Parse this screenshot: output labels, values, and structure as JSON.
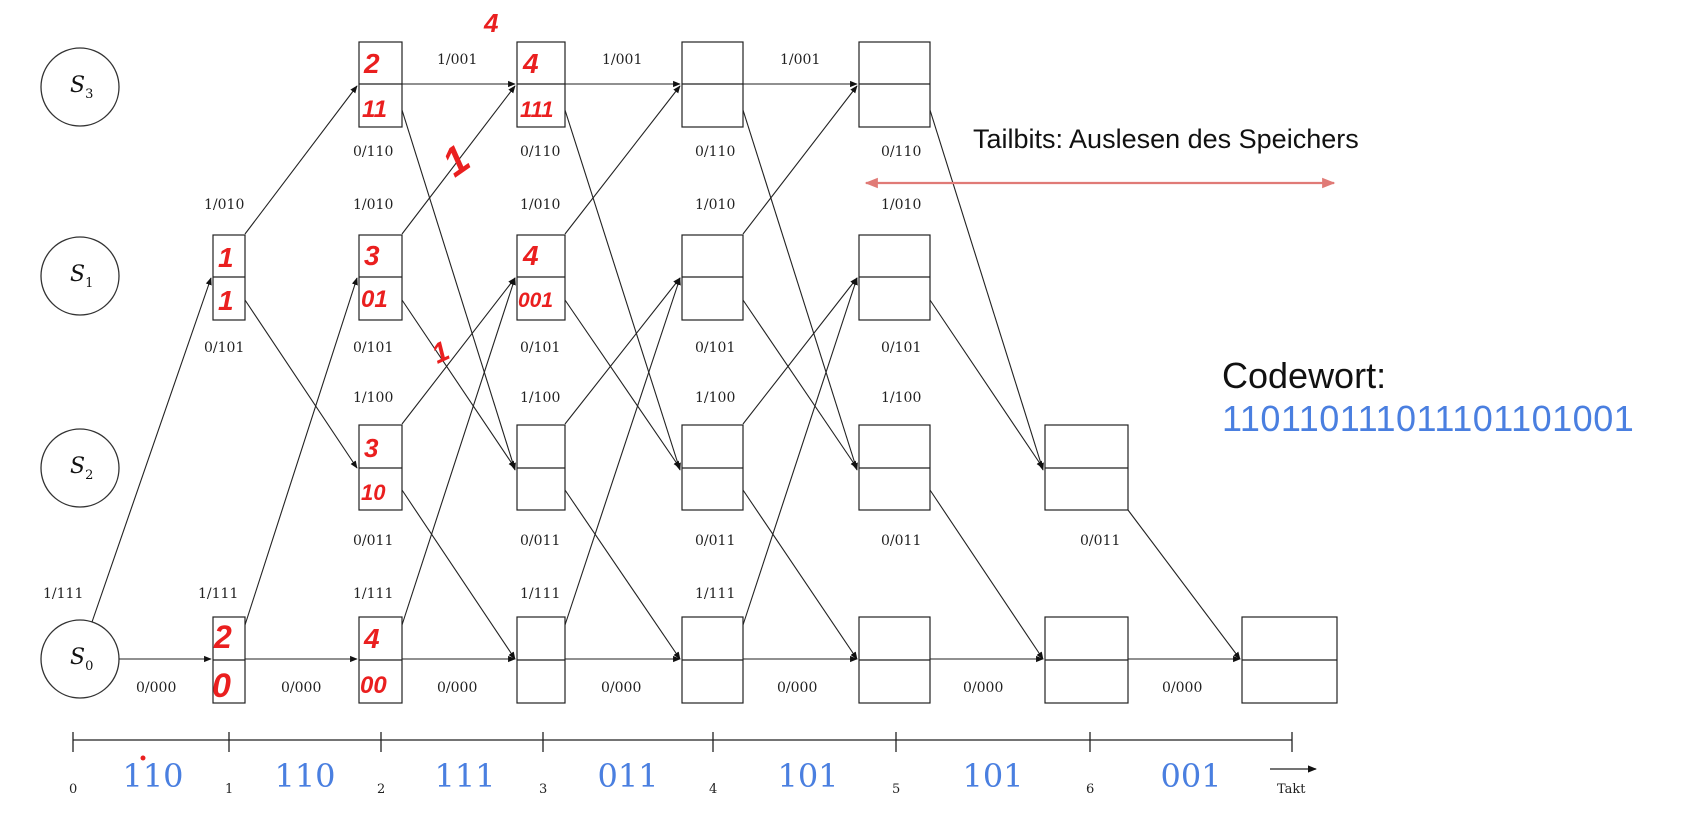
{
  "diagram": {
    "states": [
      {
        "id": "S3",
        "base": "S",
        "sub": "3"
      },
      {
        "id": "S1",
        "base": "S",
        "sub": "1"
      },
      {
        "id": "S2",
        "base": "S",
        "sub": "2"
      },
      {
        "id": "S0",
        "base": "S",
        "sub": "0"
      }
    ],
    "edge_labels": {
      "s0_stay": "0/000",
      "s0_to_s1": "1/111",
      "s1_to_s3": "1/010",
      "s1_to_s2": "0/101",
      "s2_to_s1": "1/100",
      "s2_to_s0": "0/011",
      "s3_stay": "1/001",
      "s3_to_s2": "0/110"
    },
    "axis": {
      "ticks": [
        "0",
        "1",
        "2",
        "3",
        "4",
        "5",
        "6"
      ],
      "label": "Takt",
      "codewords": [
        "110",
        "110",
        "111",
        "011",
        "101",
        "101",
        "001"
      ]
    },
    "handwritten": {
      "t1_s1": [
        "1",
        "1"
      ],
      "t1_s0": [
        "2",
        "0"
      ],
      "t2_s3": [
        "2",
        "11"
      ],
      "t2_s1": [
        "3",
        "01"
      ],
      "t2_s2": [
        "3",
        "10"
      ],
      "t2_s0": [
        "4",
        "00"
      ],
      "t3_s3": [
        "4",
        "111"
      ],
      "t3_s1": [
        "4",
        "001"
      ],
      "extra_4": "4",
      "extra_1a": "1",
      "extra_1b": "1"
    },
    "tailbits_note": "Tailbits: Auslesen des Speichers",
    "codewort_title": "Codewort:",
    "codewort_value": "110110111011101101001",
    "colors": {
      "handwriting": "#ea1f1f",
      "codeword_blue": "#4a7fe0",
      "tail_arrow": "#e07a76"
    }
  }
}
